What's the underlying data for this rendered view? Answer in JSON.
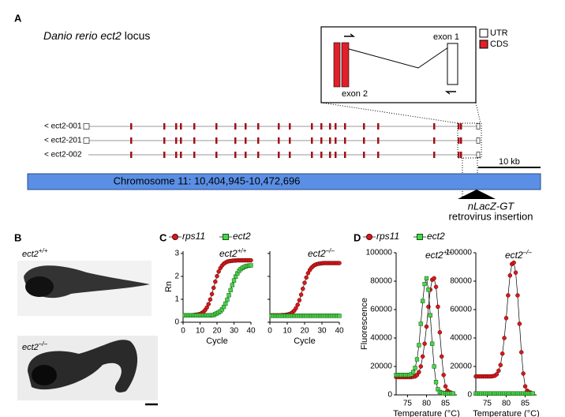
{
  "panel_labels": [
    "A",
    "B",
    "C",
    "D"
  ],
  "panel_a": {
    "title_italic": "Danio rerio ect2",
    "title_rest": "locus",
    "inset": {
      "exon2": "exon 2",
      "exon1": "exon 1",
      "legend": [
        "UTR",
        "CDS"
      ]
    },
    "transcripts": [
      "< ect2-001",
      "< ect2-201",
      "< ect2-002"
    ],
    "scale": "10 kb",
    "chromosome": "Chromosome 11: 10,404,945-10,472,696",
    "insertion": [
      "nLacZ-GT",
      "retrovirus insertion"
    ]
  },
  "panel_b": {
    "genotypes": [
      {
        "gene": "ect2",
        "genotype": "+/+"
      },
      {
        "gene": "ect2",
        "genotype": "–/–"
      }
    ]
  },
  "chart_data": [
    {
      "type": "line",
      "title": "ect2",
      "title_superscript": "+/+",
      "ylabel": "Rn",
      "xlabel": "Cycle",
      "x": [
        1,
        2,
        3,
        4,
        5,
        6,
        7,
        8,
        9,
        10,
        11,
        12,
        13,
        14,
        15,
        16,
        17,
        18,
        19,
        20,
        21,
        22,
        23,
        24,
        25,
        26,
        27,
        28,
        29,
        30,
        31,
        32,
        33,
        34,
        35,
        36,
        37,
        38,
        39,
        40
      ],
      "xlim": [
        0,
        40
      ],
      "xticks": [
        0,
        10,
        20,
        30,
        40
      ],
      "ylim": [
        0,
        3.1
      ],
      "yticks": [
        0,
        1,
        2,
        3
      ],
      "series": [
        {
          "name": "rps11",
          "color": "#d7191c",
          "values": [
            0.3,
            0.3,
            0.3,
            0.3,
            0.3,
            0.31,
            0.32,
            0.33,
            0.34,
            0.36,
            0.4,
            0.45,
            0.53,
            0.64,
            0.79,
            0.99,
            1.23,
            1.5,
            1.77,
            2.01,
            2.21,
            2.36,
            2.47,
            2.55,
            2.6,
            2.64,
            2.66,
            2.67,
            2.68,
            2.69,
            2.69,
            2.7,
            2.7,
            2.7,
            2.7,
            2.7,
            2.7,
            2.7,
            2.7,
            2.7
          ]
        },
        {
          "name": "ect2",
          "color": "#4cd44c",
          "values": [
            0.3,
            0.3,
            0.3,
            0.3,
            0.3,
            0.3,
            0.3,
            0.3,
            0.3,
            0.3,
            0.3,
            0.3,
            0.3,
            0.3,
            0.3,
            0.3,
            0.31,
            0.31,
            0.36,
            0.39,
            0.43,
            0.48,
            0.56,
            0.67,
            0.81,
            0.98,
            1.18,
            1.4,
            1.62,
            1.82,
            1.99,
            2.13,
            2.24,
            2.32,
            2.37,
            2.41,
            2.44,
            2.46,
            2.47,
            2.48
          ]
        }
      ]
    },
    {
      "type": "line",
      "title": "ect2",
      "title_superscript": "–/–",
      "xlabel": "Cycle",
      "x": [
        1,
        2,
        3,
        4,
        5,
        6,
        7,
        8,
        9,
        10,
        11,
        12,
        13,
        14,
        15,
        16,
        17,
        18,
        19,
        20,
        21,
        22,
        23,
        24,
        25,
        26,
        27,
        28,
        29,
        30,
        31,
        32,
        33,
        34,
        35,
        36,
        37,
        38,
        39,
        40
      ],
      "xlim": [
        0,
        40
      ],
      "xticks": [
        0,
        10,
        20,
        30,
        40
      ],
      "ylim": [
        0,
        3.1
      ],
      "yticks": [
        0,
        1,
        2,
        3
      ],
      "series": [
        {
          "color": "#d7191c",
          "values": [
            0.3,
            0.3,
            0.3,
            0.3,
            0.3,
            0.3,
            0.31,
            0.31,
            0.32,
            0.33,
            0.35,
            0.38,
            0.43,
            0.5,
            0.61,
            0.76,
            0.96,
            1.2,
            1.46,
            1.72,
            1.95,
            2.14,
            2.28,
            2.38,
            2.45,
            2.5,
            2.53,
            2.55,
            2.56,
            2.57,
            2.58,
            2.58,
            2.58,
            2.58,
            2.58,
            2.58,
            2.58,
            2.58,
            2.58,
            2.58
          ]
        },
        {
          "color": "#4cd44c",
          "values": [
            0.28,
            0.28,
            0.28,
            0.28,
            0.28,
            0.28,
            0.28,
            0.28,
            0.28,
            0.28,
            0.28,
            0.28,
            0.28,
            0.28,
            0.28,
            0.28,
            0.28,
            0.28,
            0.28,
            0.28,
            0.28,
            0.28,
            0.28,
            0.28,
            0.28,
            0.28,
            0.28,
            0.28,
            0.28,
            0.28,
            0.28,
            0.28,
            0.28,
            0.28,
            0.28,
            0.28,
            0.28,
            0.28,
            0.28,
            0.28
          ]
        }
      ]
    },
    {
      "type": "line",
      "title": "ect2",
      "title_superscript": "+/+",
      "ylabel": "Fluorescence",
      "xlabel": "Temperature (°C)",
      "x": [
        72,
        72.5,
        73,
        73.5,
        74,
        74.5,
        75,
        75.5,
        76,
        76.5,
        77,
        77.5,
        78,
        78.5,
        79,
        79.5,
        80,
        80.5,
        81,
        81.5,
        82,
        82.5,
        83,
        83.5,
        84,
        84.5,
        85,
        85.5,
        86,
        86.5,
        87
      ],
      "xlim": [
        72,
        88
      ],
      "xticks": [
        75,
        80,
        85
      ],
      "ylim": [
        0,
        100000
      ],
      "yticks": [
        0,
        20000,
        40000,
        60000,
        80000,
        100000
      ],
      "series": [
        {
          "name": "rps11",
          "color": "#d7191c",
          "values": [
            12500,
            12500,
            12500,
            12500,
            12500,
            12500,
            12500,
            12500,
            12500,
            12800,
            13000,
            14000,
            16000,
            20000,
            27000,
            36000,
            48000,
            62000,
            74000,
            81000,
            82000,
            76000,
            62000,
            44000,
            27000,
            14000,
            6000,
            3000,
            2000,
            1500,
            1000
          ]
        },
        {
          "name": "ect2",
          "color": "#4cd44c",
          "values": [
            14000,
            14000,
            14000,
            14000,
            14000,
            14000,
            14000,
            14000,
            14500,
            16000,
            19000,
            25000,
            35000,
            50000,
            66000,
            78000,
            82000,
            74000,
            56000,
            36000,
            20000,
            9000,
            4000,
            2000,
            1500,
            1200,
            1000,
            1000,
            1000,
            1000,
            1000
          ]
        }
      ]
    },
    {
      "type": "line",
      "title": "ect2",
      "title_superscript": "–/–",
      "xlabel": "Temperature (°C)",
      "x": [
        72,
        72.5,
        73,
        73.5,
        74,
        74.5,
        75,
        75.5,
        76,
        76.5,
        77,
        77.5,
        78,
        78.5,
        79,
        79.5,
        80,
        80.5,
        81,
        81.5,
        82,
        82.5,
        83,
        83.5,
        84,
        84.5,
        85,
        85.5,
        86,
        86.5,
        87
      ],
      "xlim": [
        72,
        88
      ],
      "xticks": [
        75,
        80,
        85
      ],
      "ylim": [
        0,
        100000
      ],
      "yticks": [
        0,
        20000,
        40000,
        60000,
        80000,
        100000
      ],
      "series": [
        {
          "color": "#d7191c",
          "values": [
            13000,
            13000,
            13000,
            13000,
            13000,
            13000,
            13000,
            13000,
            13000,
            13200,
            13500,
            14500,
            17000,
            21000,
            29000,
            40000,
            54000,
            70000,
            84000,
            92000,
            93000,
            86000,
            70000,
            50000,
            30000,
            15000,
            6000,
            3000,
            2000,
            1500,
            1000
          ]
        },
        {
          "color": "#4cd44c",
          "values": [
            1000,
            1000,
            1000,
            1000,
            1000,
            1000,
            1000,
            1000,
            1000,
            1000,
            1000,
            1000,
            1000,
            1000,
            1000,
            1000,
            1000,
            1000,
            1000,
            1000,
            1000,
            1000,
            1000,
            1000,
            1000,
            1000,
            1000,
            1000,
            1000,
            1000,
            1000
          ]
        }
      ]
    }
  ]
}
